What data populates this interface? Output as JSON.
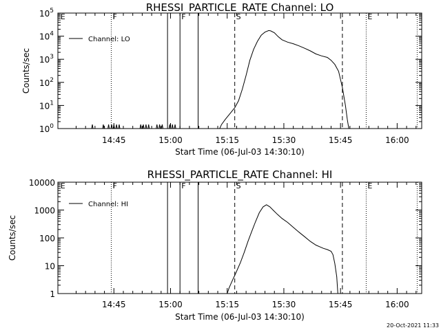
{
  "footer": {
    "timestamp": "20-Oct-2021 11:33"
  },
  "chart_data": [
    {
      "type": "line",
      "title": "RHESSI_PARTICLE_RATE Channel: LO",
      "xlabel": "Start Time (06-Jul-03 14:30:10)",
      "ylabel": "Counts/sec",
      "yscale": "log",
      "ylim": [
        1,
        100000
      ],
      "xlim_minutes": [
        0.17,
        96.5
      ],
      "x_ticks": [
        {
          "label": "14:45",
          "minute": 15
        },
        {
          "label": "15:00",
          "minute": 30
        },
        {
          "label": "15:15",
          "minute": 45
        },
        {
          "label": "15:30",
          "minute": 60
        },
        {
          "label": "15:45",
          "minute": 75
        },
        {
          "label": "16:00",
          "minute": 90
        }
      ],
      "y_ticks": [
        {
          "value": 1,
          "label": "10",
          "exp": "0"
        },
        {
          "value": 10,
          "label": "10",
          "exp": "1"
        },
        {
          "value": 100,
          "label": "10",
          "exp": "2"
        },
        {
          "value": 1000,
          "label": "10",
          "exp": "3"
        },
        {
          "value": 10000,
          "label": "10",
          "exp": "4"
        },
        {
          "value": 100000,
          "label": "10",
          "exp": "5"
        }
      ],
      "legend": {
        "entry": "Channel: LO",
        "placement": "top-left"
      },
      "event_markers": [
        {
          "label": "E",
          "minute": 0.5,
          "style": "none"
        },
        {
          "label": "F",
          "minute": 14.3,
          "style": "dotted"
        },
        {
          "label": "",
          "minute": 29.2,
          "style": "solid"
        },
        {
          "label": "F",
          "minute": 32.5,
          "style": "solid"
        },
        {
          "label": "",
          "minute": 37.3,
          "style": "solid"
        },
        {
          "label": "S",
          "minute": 47.0,
          "style": "dashed"
        },
        {
          "label": "",
          "minute": 75.5,
          "style": "dashed"
        },
        {
          "label": "E",
          "minute": 81.8,
          "style": "dotted"
        },
        {
          "label": "",
          "minute": 95.3,
          "style": "dotted"
        }
      ],
      "spikes": [
        {
          "minute": 9.3,
          "value": 1.5
        },
        {
          "minute": 12.2,
          "value": 1.5
        },
        {
          "minute": 13.6,
          "value": 1.5
        },
        {
          "minute": 14.4,
          "value": 1.5
        },
        {
          "minute": 15.0,
          "value": 1.5
        },
        {
          "minute": 15.7,
          "value": 1.5
        },
        {
          "minute": 16.4,
          "value": 1.5
        },
        {
          "minute": 22.1,
          "value": 1.5
        },
        {
          "minute": 22.8,
          "value": 1.5
        },
        {
          "minute": 23.5,
          "value": 1.5
        },
        {
          "minute": 24.2,
          "value": 1.5
        },
        {
          "minute": 26.4,
          "value": 1.5
        },
        {
          "minute": 27.1,
          "value": 1.5
        },
        {
          "minute": 27.8,
          "value": 1.5
        },
        {
          "minute": 29.8,
          "value": 1.5
        },
        {
          "minute": 30.5,
          "value": 1.5
        },
        {
          "minute": 31.2,
          "value": 1.5
        }
      ],
      "series": [
        {
          "name": "Channel: LO",
          "points": [
            [
              43.0,
              1.0
            ],
            [
              43.5,
              1.5
            ],
            [
              44.5,
              2.5
            ],
            [
              45.5,
              4.0
            ],
            [
              47.0,
              8.0
            ],
            [
              48.0,
              16
            ],
            [
              49.0,
              50
            ],
            [
              50.0,
              200
            ],
            [
              51.0,
              900
            ],
            [
              52.0,
              2700
            ],
            [
              53.0,
              6000
            ],
            [
              54.0,
              11000
            ],
            [
              55.0,
              15000
            ],
            [
              56.0,
              17500
            ],
            [
              56.5,
              17000
            ],
            [
              57.5,
              14000
            ],
            [
              58.5,
              9500
            ],
            [
              59.5,
              7000
            ],
            [
              61.0,
              5500
            ],
            [
              62.5,
              4700
            ],
            [
              64.0,
              3800
            ],
            [
              65.5,
              3000
            ],
            [
              67.0,
              2300
            ],
            [
              68.5,
              1700
            ],
            [
              70.0,
              1400
            ],
            [
              71.5,
              1200
            ],
            [
              72.5,
              900
            ],
            [
              73.5,
              600
            ],
            [
              74.5,
              300
            ],
            [
              75.5,
              60
            ],
            [
              76.3,
              10
            ],
            [
              76.8,
              2.5
            ],
            [
              77.2,
              1.0
            ]
          ]
        }
      ]
    },
    {
      "type": "line",
      "title": "RHESSI_PARTICLE_RATE Channel: HI",
      "xlabel": "Start Time (06-Jul-03 14:30:10)",
      "ylabel": "Counts/sec",
      "yscale": "log",
      "ylim": [
        1,
        10000
      ],
      "xlim_minutes": [
        0.17,
        96.5
      ],
      "x_ticks": [
        {
          "label": "14:45",
          "minute": 15
        },
        {
          "label": "15:00",
          "minute": 30
        },
        {
          "label": "15:15",
          "minute": 45
        },
        {
          "label": "15:30",
          "minute": 60
        },
        {
          "label": "15:45",
          "minute": 75
        },
        {
          "label": "16:00",
          "minute": 90
        }
      ],
      "y_ticks": [
        {
          "value": 1,
          "label": "1"
        },
        {
          "value": 10,
          "label": "10"
        },
        {
          "value": 100,
          "label": "100"
        },
        {
          "value": 1000,
          "label": "1000"
        },
        {
          "value": 10000,
          "label": "10000"
        }
      ],
      "legend": {
        "entry": "Channel: HI",
        "placement": "top-left"
      },
      "event_markers": [
        {
          "label": "E",
          "minute": 0.5,
          "style": "none"
        },
        {
          "label": "F",
          "minute": 14.3,
          "style": "dotted"
        },
        {
          "label": "",
          "minute": 29.2,
          "style": "solid"
        },
        {
          "label": "F",
          "minute": 32.5,
          "style": "solid"
        },
        {
          "label": "",
          "minute": 37.3,
          "style": "solid"
        },
        {
          "label": "S",
          "minute": 47.0,
          "style": "dashed"
        },
        {
          "label": "",
          "minute": 75.5,
          "style": "dashed"
        },
        {
          "label": "E",
          "minute": 81.8,
          "style": "dotted"
        },
        {
          "label": "",
          "minute": 95.3,
          "style": "dotted"
        }
      ],
      "spikes": [],
      "series": [
        {
          "name": "Channel: HI",
          "points": [
            [
              45.0,
              1.0
            ],
            [
              45.5,
              1.6
            ],
            [
              46.3,
              2.8
            ],
            [
              47.3,
              5.5
            ],
            [
              48.5,
              13
            ],
            [
              49.5,
              30
            ],
            [
              50.5,
              75
            ],
            [
              51.5,
              170
            ],
            [
              52.5,
              380
            ],
            [
              53.5,
              800
            ],
            [
              54.5,
              1300
            ],
            [
              55.4,
              1550
            ],
            [
              56.3,
              1300
            ],
            [
              57.3,
              950
            ],
            [
              58.3,
              700
            ],
            [
              59.5,
              500
            ],
            [
              61.0,
              360
            ],
            [
              62.5,
              240
            ],
            [
              64.0,
              160
            ],
            [
              65.5,
              110
            ],
            [
              67.0,
              75
            ],
            [
              68.5,
              55
            ],
            [
              69.5,
              48
            ],
            [
              70.5,
              42
            ],
            [
              71.5,
              38
            ],
            [
              72.5,
              33
            ],
            [
              73.0,
              25
            ],
            [
              73.5,
              12
            ],
            [
              74.0,
              4
            ],
            [
              74.3,
              1.0
            ]
          ]
        }
      ]
    }
  ]
}
